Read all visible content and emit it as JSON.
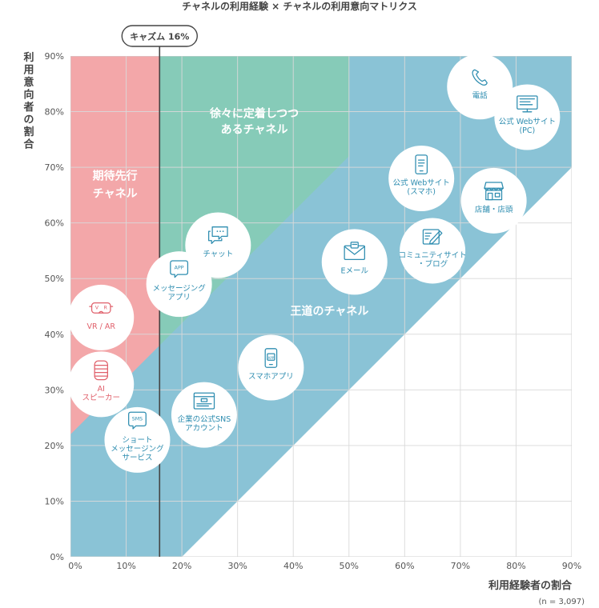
{
  "chart_data": {
    "type": "scatter",
    "title": "チャネルの利用経験 × チャネルの利用意向マトリクス",
    "xlabel": "利用経験者の割合",
    "ylabel": "利用意向者の割合",
    "note": "(n = 3,097)",
    "xlim": [
      0,
      90
    ],
    "ylim": [
      0,
      90
    ],
    "x_ticks": [
      "0%",
      "10%",
      "20%",
      "30%",
      "40%",
      "50%",
      "60%",
      "70%",
      "80%",
      "90%"
    ],
    "y_ticks": [
      "0%",
      "10%",
      "20%",
      "30%",
      "40%",
      "50%",
      "60%",
      "70%",
      "80%",
      "90%"
    ],
    "grid": true,
    "chasm": {
      "label": "キャズム 16%",
      "x": 16
    },
    "regions": [
      {
        "name": "期待先行チャネル",
        "lines": [
          "期待先行",
          "チャネル"
        ],
        "color": "#f3a7a9",
        "text_color": "#ffffff"
      },
      {
        "name": "徐々に定着しつつあるチャネル",
        "lines": [
          "徐々に定着しつつ",
          "あるチャネル"
        ],
        "color": "#86cbb8",
        "text_color": "#ffffff"
      },
      {
        "name": "王道のチャネル",
        "lines": [
          "王道のチャネル"
        ],
        "color": "#8ac3d6",
        "text_color": "#ffffff"
      }
    ],
    "points": [
      {
        "lines": [
          "電話"
        ],
        "x": 73.5,
        "y": 84.5,
        "icon": "phone-icon",
        "color": "#2e8db0"
      },
      {
        "lines": [
          "公式 Webサイト",
          "(PC)"
        ],
        "x": 82,
        "y": 79,
        "icon": "monitor-icon",
        "color": "#2e8db0"
      },
      {
        "lines": [
          "公式 Webサイト",
          "(スマホ)"
        ],
        "x": 63,
        "y": 68,
        "icon": "smartphone-icon",
        "color": "#2e8db0"
      },
      {
        "lines": [
          "店舗・店頭"
        ],
        "x": 76,
        "y": 64,
        "icon": "store-icon",
        "color": "#2e8db0"
      },
      {
        "lines": [
          "コミュニティサイト",
          "・ブログ"
        ],
        "x": 65,
        "y": 55,
        "icon": "blog-icon",
        "color": "#2e8db0"
      },
      {
        "lines": [
          "Eメール"
        ],
        "x": 51,
        "y": 53,
        "icon": "mail-icon",
        "color": "#2e8db0"
      },
      {
        "lines": [
          "チャット"
        ],
        "x": 26.5,
        "y": 56,
        "icon": "chat-icon",
        "color": "#2e8db0"
      },
      {
        "lines": [
          "メッセージング",
          "アプリ"
        ],
        "x": 19.5,
        "y": 49,
        "icon": "app-bubble-icon",
        "color": "#2e8db0"
      },
      {
        "lines": [
          "VR / AR"
        ],
        "x": 5.5,
        "y": 43,
        "icon": "vr-headset-icon",
        "color": "#e0606b"
      },
      {
        "lines": [
          "AI",
          "スピーカー"
        ],
        "x": 5.5,
        "y": 31,
        "icon": "smart-speaker-icon",
        "color": "#e0606b"
      },
      {
        "lines": [
          "スマホアプリ"
        ],
        "x": 36,
        "y": 34,
        "icon": "smartphone-app-icon",
        "color": "#2e8db0"
      },
      {
        "lines": [
          "企業の公式SNS",
          "アカウント"
        ],
        "x": 24,
        "y": 25.5,
        "icon": "sns-window-icon",
        "color": "#2e8db0"
      },
      {
        "lines": [
          "ショート",
          "メッセージング",
          "サービス"
        ],
        "x": 12,
        "y": 21,
        "icon": "sms-bubble-icon",
        "color": "#2e8db0"
      }
    ]
  }
}
